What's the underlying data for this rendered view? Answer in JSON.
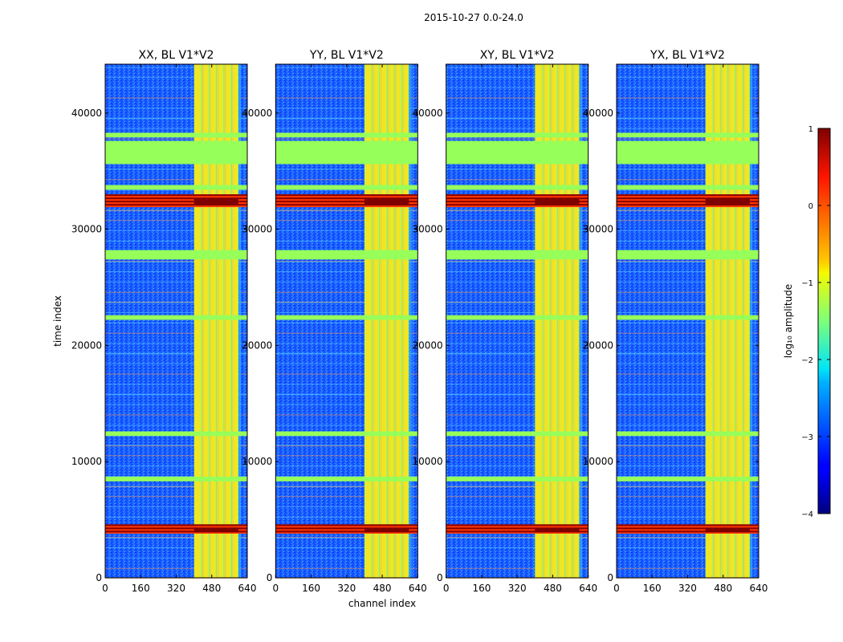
{
  "chart_data": {
    "type": "heatmap",
    "suptitle": "2015-10-27 0.0-24.0",
    "xlabel": "channel index",
    "ylabel": "time index",
    "xlim": [
      0,
      640
    ],
    "ylim": [
      0,
      44200
    ],
    "xticks": [
      0,
      160,
      320,
      480,
      640
    ],
    "yticks": [
      0,
      10000,
      20000,
      30000,
      40000
    ],
    "colorbar": {
      "label": "log₁₀ amplitude",
      "range": [
        -4,
        1
      ],
      "ticks": [
        1,
        0,
        -1,
        -2,
        -3,
        -4
      ],
      "tick_labels": [
        "1",
        "0",
        "−1",
        "−2",
        "−3",
        "−4"
      ],
      "colormap": "jet"
    },
    "panels": [
      {
        "title": "XX, BL V1*V2"
      },
      {
        "title": "YY, BL V1*V2"
      },
      {
        "title": "XY, BL V1*V2"
      },
      {
        "title": "YX, BL V1*V2"
      }
    ],
    "flagged_time_bands": [
      [
        27400,
        28200
      ],
      [
        35600,
        37600
      ],
      [
        37900,
        38300
      ],
      [
        12200,
        12600
      ],
      [
        33400,
        33800
      ],
      [
        22200,
        22600
      ],
      [
        8300,
        8700
      ]
    ],
    "high_amplitude_time_bands": [
      [
        3800,
        4600
      ],
      [
        31900,
        33000
      ]
    ],
    "rfi_channel_range": [
      400,
      600
    ]
  }
}
